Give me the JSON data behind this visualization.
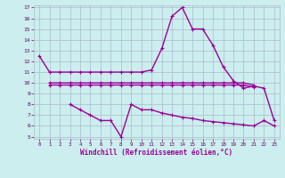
{
  "xlabel": "Windchill (Refroidissement éolien,°C)",
  "bg_color": "#cceeee",
  "grid_color": "#aabbcc",
  "line_color": "#990099",
  "hours": [
    0,
    1,
    2,
    3,
    4,
    5,
    6,
    7,
    8,
    9,
    10,
    11,
    12,
    13,
    14,
    15,
    16,
    17,
    18,
    19,
    20,
    21,
    22,
    23
  ],
  "line1": [
    12.5,
    11.0,
    11.0,
    11.0,
    11.0,
    11.0,
    11.0,
    11.0,
    11.0,
    11.0,
    11.0,
    11.2,
    13.2,
    16.2,
    17.0,
    15.0,
    15.0,
    13.5,
    11.5,
    10.2,
    9.5,
    9.7,
    9.5,
    6.5
  ],
  "line2a": [
    null,
    10.0,
    10.0,
    10.0,
    10.0,
    10.0,
    10.0,
    10.0,
    10.0,
    10.0,
    10.0,
    10.0,
    10.0,
    10.0,
    10.0,
    10.0,
    10.0,
    10.0,
    10.0,
    10.0,
    10.0,
    9.8,
    null,
    null
  ],
  "line2b": [
    null,
    9.8,
    9.8,
    9.8,
    9.8,
    9.8,
    9.8,
    9.8,
    9.8,
    9.8,
    9.8,
    9.8,
    9.8,
    9.8,
    9.8,
    9.8,
    9.8,
    9.8,
    9.8,
    9.8,
    9.8,
    9.6,
    null,
    null
  ],
  "line3": [
    null,
    null,
    null,
    8.0,
    7.5,
    7.0,
    6.5,
    6.5,
    5.0,
    8.0,
    7.5,
    7.5,
    7.2,
    7.0,
    6.8,
    6.7,
    6.5,
    6.4,
    6.3,
    6.2,
    6.1,
    6.0,
    6.5,
    6.0
  ],
  "ylim": [
    5,
    17
  ],
  "xlim": [
    -0.5,
    23.5
  ],
  "yticks": [
    5,
    6,
    7,
    8,
    9,
    10,
    11,
    12,
    13,
    14,
    15,
    16,
    17
  ],
  "xticks": [
    0,
    1,
    2,
    3,
    4,
    5,
    6,
    7,
    8,
    9,
    10,
    11,
    12,
    13,
    14,
    15,
    16,
    17,
    18,
    19,
    20,
    21,
    22,
    23
  ]
}
